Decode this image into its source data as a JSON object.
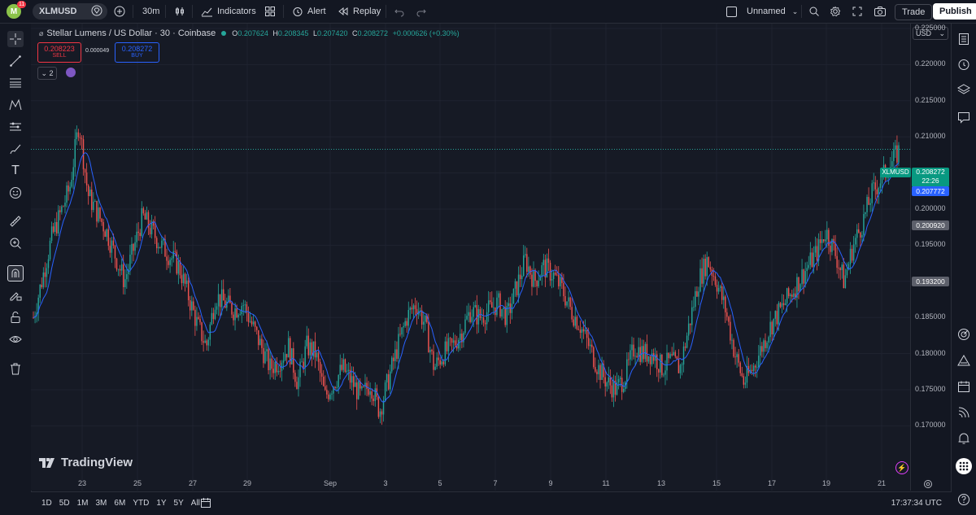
{
  "topbar": {
    "symbol": "XLMUSD",
    "avatar_letter": "M",
    "notif_count": "11",
    "interval": "30m",
    "indicators_label": "Indicators",
    "alert_label": "Alert",
    "replay_label": "Replay",
    "layout_name": "Unnamed",
    "trade_label": "Trade",
    "publish_label": "Publish"
  },
  "legend": {
    "title": "Stellar Lumens / US Dollar · 30 · Coinbase",
    "o_label": "O",
    "o_value": "0.207624",
    "h_label": "H",
    "h_value": "0.208345",
    "l_label": "L",
    "l_value": "0.207420",
    "c_label": "C",
    "c_value": "0.208272",
    "change": "+0.000626 (+0.30%)",
    "sell_price": "0.208223",
    "sell_label": "SELL",
    "spread": "0.000049",
    "buy_price": "0.208272",
    "buy_label": "BUY",
    "indicator_count": "2"
  },
  "watermark": "TradingView",
  "price_scale": {
    "currency": "USD",
    "ticks": [
      "0.225000",
      "0.220000",
      "0.215000",
      "0.210000",
      "0.205000",
      "0.200000",
      "0.195000",
      "0.190000",
      "0.185000",
      "0.180000",
      "0.175000",
      "0.170000"
    ],
    "tags": {
      "symbol": "XLMUSD",
      "last_price": "0.208272",
      "countdown": "22:26",
      "ma_value": "0.207772",
      "high_line": "0.200920",
      "low_line": "0.193200"
    }
  },
  "time_axis": [
    "23",
    "25",
    "27",
    "29",
    "Sep",
    "3",
    "5",
    "7",
    "9",
    "11",
    "13",
    "15",
    "17",
    "19",
    "21"
  ],
  "bottombar": {
    "ranges": [
      "1D",
      "5D",
      "1M",
      "3M",
      "6M",
      "YTD",
      "1Y",
      "5Y",
      "All"
    ],
    "clock": "17:37:34 UTC"
  },
  "colors": {
    "up": "#26a69a",
    "down": "#ef5350",
    "ma": "#2962ff",
    "bg": "#161a25",
    "accent": "#2962ff"
  },
  "chart_data": {
    "type": "candlestick",
    "ylim": [
      0.168,
      0.227
    ],
    "x_labels": [
      "23",
      "25",
      "27",
      "29",
      "Sep",
      "3",
      "5",
      "7",
      "9",
      "11",
      "13",
      "15",
      "17",
      "19",
      "21"
    ],
    "series": [
      {
        "name": "XLMUSD",
        "close_path": [
          [
            0,
            0.185
          ],
          [
            2,
            0.196
          ],
          [
            4,
            0.203
          ],
          [
            5,
            0.212
          ],
          [
            6,
            0.202
          ],
          [
            8,
            0.197
          ],
          [
            10,
            0.19
          ],
          [
            12,
            0.199
          ],
          [
            14,
            0.195
          ],
          [
            16,
            0.192
          ],
          [
            18,
            0.184
          ],
          [
            19,
            0.181
          ],
          [
            20,
            0.188
          ],
          [
            22,
            0.186
          ],
          [
            23,
            0.187
          ],
          [
            24,
            0.184
          ],
          [
            26,
            0.178
          ],
          [
            27,
            0.179
          ],
          [
            28,
            0.181
          ],
          [
            29,
            0.176
          ],
          [
            30,
            0.181
          ],
          [
            31,
            0.18
          ],
          [
            32,
            0.174
          ],
          [
            33,
            0.176
          ],
          [
            34,
            0.178
          ],
          [
            35,
            0.176
          ],
          [
            36,
            0.174
          ],
          [
            37,
            0.176
          ],
          [
            38,
            0.172
          ],
          [
            40,
            0.181
          ],
          [
            41,
            0.185
          ],
          [
            42,
            0.187
          ],
          [
            43,
            0.184
          ],
          [
            44,
            0.178
          ],
          [
            45,
            0.18
          ],
          [
            46,
            0.181
          ],
          [
            47,
            0.183
          ],
          [
            48,
            0.186
          ],
          [
            49,
            0.185
          ],
          [
            51,
            0.187
          ],
          [
            52,
            0.185
          ],
          [
            53,
            0.189
          ],
          [
            54,
            0.193
          ],
          [
            55,
            0.19
          ],
          [
            56,
            0.192
          ],
          [
            57,
            0.191
          ],
          [
            58,
            0.189
          ],
          [
            59,
            0.186
          ],
          [
            60,
            0.184
          ],
          [
            61,
            0.181
          ],
          [
            62,
            0.178
          ],
          [
            63,
            0.176
          ],
          [
            64,
            0.175
          ],
          [
            65,
            0.177
          ],
          [
            66,
            0.181
          ],
          [
            67,
            0.18
          ],
          [
            68,
            0.18
          ],
          [
            69,
            0.178
          ],
          [
            70,
            0.179
          ],
          [
            71,
            0.178
          ],
          [
            72,
            0.184
          ],
          [
            73,
            0.19
          ],
          [
            74,
            0.193
          ],
          [
            75,
            0.19
          ],
          [
            76,
            0.186
          ],
          [
            77,
            0.18
          ],
          [
            78,
            0.176
          ],
          [
            79,
            0.178
          ],
          [
            80,
            0.181
          ],
          [
            81,
            0.184
          ],
          [
            82,
            0.186
          ],
          [
            83,
            0.188
          ],
          [
            85,
            0.192
          ],
          [
            86,
            0.194
          ],
          [
            87,
            0.197
          ],
          [
            88,
            0.194
          ],
          [
            89,
            0.19
          ],
          [
            90,
            0.195
          ],
          [
            91,
            0.198
          ],
          [
            92,
            0.202
          ],
          [
            93,
            0.204
          ],
          [
            94,
            0.206
          ],
          [
            95,
            0.208
          ]
        ]
      }
    ]
  }
}
